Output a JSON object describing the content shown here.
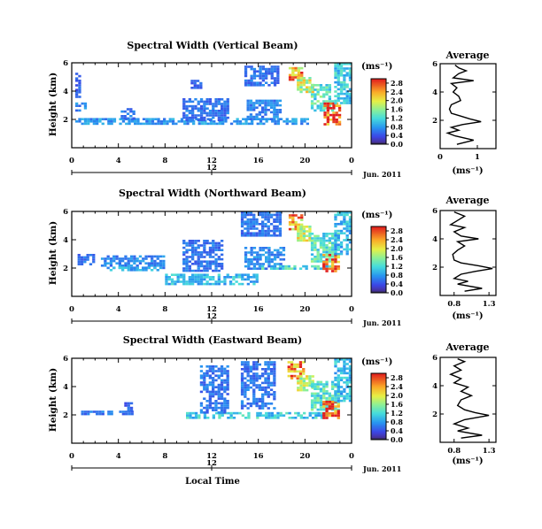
{
  "chart_data": [
    {
      "type": "heatmap",
      "title": "Spectral Width (Vertical Beam)",
      "ylabel": "Height (km)",
      "xlim": [
        0,
        24
      ],
      "ylim": [
        0,
        6
      ],
      "x_ticks": [
        "0",
        "4",
        "8",
        "12",
        "16",
        "20",
        "0"
      ],
      "y_ticks": [
        "2",
        "4",
        "6"
      ],
      "date_label": "Jun. 2011",
      "date_marker": "12",
      "colorbar": {
        "unit": "(ms⁻¹)",
        "ticks": [
          "0.0",
          "0.4",
          "0.8",
          "1.2",
          "1.6",
          "2.0",
          "2.4",
          "2.8"
        ],
        "range": [
          0,
          3.0
        ]
      },
      "regions": [
        {
          "x": [
            0.3,
            0.8
          ],
          "y": [
            3.6,
            5.3
          ],
          "v": 0.5
        },
        {
          "x": [
            0.3,
            1.3
          ],
          "y": [
            2.6,
            3.2
          ],
          "v": 0.7
        },
        {
          "x": [
            0.3,
            20.3
          ],
          "y": [
            1.7,
            2.1
          ],
          "v": 0.8
        },
        {
          "x": [
            4.2,
            5.3
          ],
          "y": [
            2.1,
            2.8
          ],
          "v": 0.6
        },
        {
          "x": [
            9.5,
            13.5
          ],
          "y": [
            2.0,
            3.5
          ],
          "v": 0.6
        },
        {
          "x": [
            10.2,
            11.0
          ],
          "y": [
            4.2,
            4.8
          ],
          "v": 0.5
        },
        {
          "x": [
            14.8,
            17.8
          ],
          "y": [
            4.4,
            5.8
          ],
          "v": 0.6
        },
        {
          "x": [
            15.0,
            17.8
          ],
          "y": [
            2.0,
            3.4
          ],
          "v": 0.7
        },
        {
          "x": [
            18.6,
            19.8
          ],
          "y": [
            4.8,
            5.7
          ],
          "v": 2.4
        },
        {
          "x": [
            19.3,
            20.6
          ],
          "y": [
            4.0,
            5.0
          ],
          "v": 1.8
        },
        {
          "x": [
            20.5,
            22.5
          ],
          "y": [
            2.6,
            4.5
          ],
          "v": 1.3
        },
        {
          "x": [
            21.6,
            23.0
          ],
          "y": [
            1.6,
            3.2
          ],
          "v": 2.9
        },
        {
          "x": [
            22.5,
            23.8
          ],
          "y": [
            3.2,
            6.0
          ],
          "v": 1.1
        }
      ],
      "profile": {
        "title": "Average",
        "xlabel": "(ms⁻¹)",
        "x_ticks": [
          "0",
          "1"
        ],
        "y_ticks": [
          "2",
          "4",
          "6"
        ],
        "xlim": [
          0,
          1.5
        ],
        "ylim": [
          0,
          6
        ],
        "points": [
          [
            0.45,
            0.3
          ],
          [
            0.9,
            0.6
          ],
          [
            0.4,
            0.9
          ],
          [
            0.2,
            1.1
          ],
          [
            0.5,
            1.3
          ],
          [
            0.3,
            1.5
          ],
          [
            0.6,
            1.7
          ],
          [
            1.1,
            1.9
          ],
          [
            0.8,
            2.1
          ],
          [
            0.55,
            2.3
          ],
          [
            0.3,
            2.5
          ],
          [
            0.25,
            2.8
          ],
          [
            0.3,
            3.1
          ],
          [
            0.55,
            3.4
          ],
          [
            0.5,
            3.7
          ],
          [
            0.35,
            4.0
          ],
          [
            0.45,
            4.3
          ],
          [
            0.3,
            4.6
          ],
          [
            0.9,
            4.8
          ],
          [
            0.35,
            5.0
          ],
          [
            0.5,
            5.3
          ],
          [
            0.7,
            5.5
          ],
          [
            0.5,
            5.7
          ],
          [
            0.4,
            5.9
          ]
        ]
      }
    },
    {
      "type": "heatmap",
      "title": "Spectral Width (Northward Beam)",
      "ylabel": "Height (km)",
      "xlim": [
        0,
        24
      ],
      "ylim": [
        0,
        6
      ],
      "x_ticks": [
        "0",
        "4",
        "8",
        "12",
        "16",
        "20",
        "0"
      ],
      "y_ticks": [
        "2",
        "4",
        "6"
      ],
      "date_label": "Jun. 2011",
      "date_marker": "12",
      "colorbar": {
        "unit": "(ms⁻¹)",
        "ticks": [
          "0.0",
          "0.4",
          "0.8",
          "1.2",
          "1.6",
          "2.0",
          "2.4",
          "2.8"
        ],
        "range": [
          0,
          3.0
        ]
      },
      "regions": [
        {
          "x": [
            0.5,
            2.0
          ],
          "y": [
            2.2,
            3.0
          ],
          "v": 0.6
        },
        {
          "x": [
            2.5,
            8.0
          ],
          "y": [
            2.0,
            2.9
          ],
          "v": 0.7
        },
        {
          "x": [
            3.0,
            7.5
          ],
          "y": [
            1.8,
            2.1
          ],
          "v": 0.9
        },
        {
          "x": [
            8.0,
            16.0
          ],
          "y": [
            0.9,
            1.6
          ],
          "v": 1.0
        },
        {
          "x": [
            9.5,
            13.0
          ],
          "y": [
            1.8,
            4.0
          ],
          "v": 0.6
        },
        {
          "x": [
            14.5,
            18.0
          ],
          "y": [
            4.3,
            6.0
          ],
          "v": 0.6
        },
        {
          "x": [
            14.8,
            18.3
          ],
          "y": [
            2.0,
            3.5
          ],
          "v": 0.7
        },
        {
          "x": [
            16.0,
            22.5
          ],
          "y": [
            1.9,
            2.2
          ],
          "v": 1.2
        },
        {
          "x": [
            18.6,
            19.8
          ],
          "y": [
            4.8,
            5.8
          ],
          "v": 2.4
        },
        {
          "x": [
            19.3,
            20.5
          ],
          "y": [
            4.0,
            5.0
          ],
          "v": 1.8
        },
        {
          "x": [
            20.5,
            23.0
          ],
          "y": [
            2.5,
            4.5
          ],
          "v": 1.3
        },
        {
          "x": [
            21.5,
            23.0
          ],
          "y": [
            1.8,
            3.0
          ],
          "v": 2.9
        },
        {
          "x": [
            22.5,
            23.8
          ],
          "y": [
            3.0,
            6.0
          ],
          "v": 1.0
        }
      ],
      "profile": {
        "title": "Average",
        "xlabel": "(ms⁻¹)",
        "x_ticks": [
          "0.8",
          "1.3"
        ],
        "y_ticks": [
          "2",
          "4",
          "6"
        ],
        "xlim": [
          0.6,
          1.4
        ],
        "ylim": [
          0,
          6
        ],
        "points": [
          [
            0.95,
            0.3
          ],
          [
            1.2,
            0.5
          ],
          [
            0.85,
            0.8
          ],
          [
            1.0,
            1.0
          ],
          [
            0.8,
            1.2
          ],
          [
            0.9,
            1.5
          ],
          [
            1.1,
            1.7
          ],
          [
            1.35,
            1.9
          ],
          [
            1.15,
            2.1
          ],
          [
            0.9,
            2.3
          ],
          [
            0.8,
            2.5
          ],
          [
            0.78,
            2.9
          ],
          [
            0.85,
            3.2
          ],
          [
            0.95,
            3.5
          ],
          [
            0.85,
            3.8
          ],
          [
            1.15,
            4.0
          ],
          [
            0.9,
            4.2
          ],
          [
            0.8,
            4.5
          ],
          [
            0.95,
            4.8
          ],
          [
            0.75,
            5.0
          ],
          [
            0.85,
            5.3
          ],
          [
            0.95,
            5.6
          ],
          [
            0.8,
            5.9
          ]
        ]
      }
    },
    {
      "type": "heatmap",
      "title": "Spectral Width (Eastward Beam)",
      "ylabel": "Height (km)",
      "xlabel": "Local Time",
      "xlim": [
        0,
        24
      ],
      "ylim": [
        0,
        6
      ],
      "x_ticks": [
        "0",
        "4",
        "8",
        "12",
        "16",
        "20",
        "0"
      ],
      "y_ticks": [
        "2",
        "4",
        "6"
      ],
      "date_label": "Jun. 2011",
      "date_marker": "12",
      "colorbar": {
        "unit": "(ms⁻¹)",
        "ticks": [
          "0.0",
          "0.4",
          "0.8",
          "1.2",
          "1.6",
          "2.0",
          "2.4",
          "2.8"
        ],
        "range": [
          0,
          3.0
        ]
      },
      "regions": [
        {
          "x": [
            0.8,
            5.2
          ],
          "y": [
            2.0,
            2.3
          ],
          "v": 0.6
        },
        {
          "x": [
            4.5,
            5.2
          ],
          "y": [
            2.4,
            2.9
          ],
          "v": 0.5
        },
        {
          "x": [
            9.8,
            22.0
          ],
          "y": [
            1.8,
            2.2
          ],
          "v": 1.1
        },
        {
          "x": [
            11.0,
            13.5
          ],
          "y": [
            2.2,
            5.5
          ],
          "v": 0.6
        },
        {
          "x": [
            14.5,
            17.5
          ],
          "y": [
            2.5,
            5.8
          ],
          "v": 0.6
        },
        {
          "x": [
            18.5,
            19.8
          ],
          "y": [
            4.6,
            5.8
          ],
          "v": 2.4
        },
        {
          "x": [
            19.3,
            20.6
          ],
          "y": [
            3.8,
            4.8
          ],
          "v": 1.8
        },
        {
          "x": [
            20.5,
            23.0
          ],
          "y": [
            2.4,
            4.4
          ],
          "v": 1.3
        },
        {
          "x": [
            21.5,
            23.0
          ],
          "y": [
            1.7,
            3.0
          ],
          "v": 2.9
        },
        {
          "x": [
            22.5,
            23.8
          ],
          "y": [
            3.0,
            6.0
          ],
          "v": 1.0
        }
      ],
      "profile": {
        "title": "Average",
        "xlabel": "(ms⁻¹)",
        "x_ticks": [
          "0.8",
          "1.3"
        ],
        "y_ticks": [
          "2",
          "4",
          "6"
        ],
        "xlim": [
          0.6,
          1.4
        ],
        "ylim": [
          0,
          6
        ],
        "points": [
          [
            0.9,
            0.3
          ],
          [
            1.2,
            0.5
          ],
          [
            0.85,
            0.8
          ],
          [
            1.0,
            1.0
          ],
          [
            0.8,
            1.3
          ],
          [
            0.95,
            1.6
          ],
          [
            1.3,
            1.9
          ],
          [
            1.1,
            2.1
          ],
          [
            0.95,
            2.3
          ],
          [
            0.85,
            2.6
          ],
          [
            0.9,
            3.0
          ],
          [
            1.05,
            3.3
          ],
          [
            0.9,
            3.6
          ],
          [
            1.0,
            3.9
          ],
          [
            0.8,
            4.2
          ],
          [
            0.9,
            4.5
          ],
          [
            0.75,
            4.8
          ],
          [
            0.9,
            5.1
          ],
          [
            0.8,
            5.4
          ],
          [
            0.95,
            5.7
          ],
          [
            0.85,
            5.9
          ]
        ]
      }
    }
  ]
}
